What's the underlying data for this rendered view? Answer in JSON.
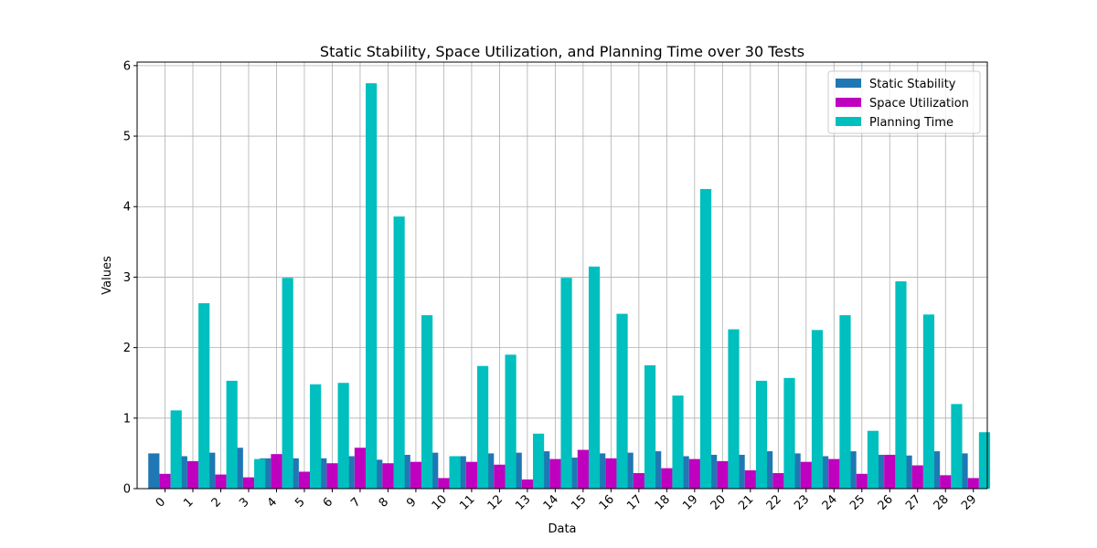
{
  "chart_data": {
    "type": "bar",
    "title": "Static Stability, Space Utilization, and Planning Time over 30 Tests",
    "xlabel": "Data",
    "ylabel": "Values",
    "categories": [
      "0",
      "1",
      "2",
      "3",
      "4",
      "5",
      "6",
      "7",
      "8",
      "9",
      "10",
      "11",
      "12",
      "13",
      "14",
      "15",
      "16",
      "17",
      "18",
      "19",
      "20",
      "21",
      "22",
      "23",
      "24",
      "25",
      "26",
      "27",
      "28",
      "29"
    ],
    "ylim": [
      0,
      6.05
    ],
    "yticks": [
      0,
      1,
      2,
      3,
      4,
      5,
      6
    ],
    "grid": true,
    "legend_position": "top-right",
    "series": [
      {
        "name": "Static Stability",
        "color": "#1f77b4",
        "values": [
          0.5,
          0.46,
          0.51,
          0.58,
          0.43,
          0.43,
          0.43,
          0.46,
          0.41,
          0.48,
          0.51,
          0.46,
          0.5,
          0.51,
          0.53,
          0.44,
          0.5,
          0.51,
          0.53,
          0.46,
          0.48,
          0.48,
          0.53,
          0.5,
          0.46,
          0.53,
          0.48,
          0.47,
          0.53,
          0.5
        ]
      },
      {
        "name": "Space Utilization",
        "color": "#bf00bf",
        "values": [
          0.21,
          0.39,
          0.2,
          0.16,
          0.49,
          0.24,
          0.36,
          0.58,
          0.36,
          0.38,
          0.15,
          0.38,
          0.34,
          0.13,
          0.42,
          0.55,
          0.43,
          0.22,
          0.29,
          0.42,
          0.39,
          0.26,
          0.22,
          0.38,
          0.42,
          0.21,
          0.48,
          0.33,
          0.19,
          0.15
        ]
      },
      {
        "name": "Planning Time",
        "color": "#00bfbf",
        "values": [
          1.11,
          2.63,
          1.53,
          0.42,
          2.99,
          1.48,
          1.5,
          5.75,
          3.86,
          2.46,
          0.46,
          1.74,
          1.9,
          0.78,
          2.99,
          3.15,
          2.48,
          1.75,
          1.32,
          4.25,
          2.26,
          1.53,
          1.57,
          2.25,
          2.46,
          0.82,
          2.94,
          2.47,
          1.2,
          0.8
        ]
      }
    ]
  }
}
